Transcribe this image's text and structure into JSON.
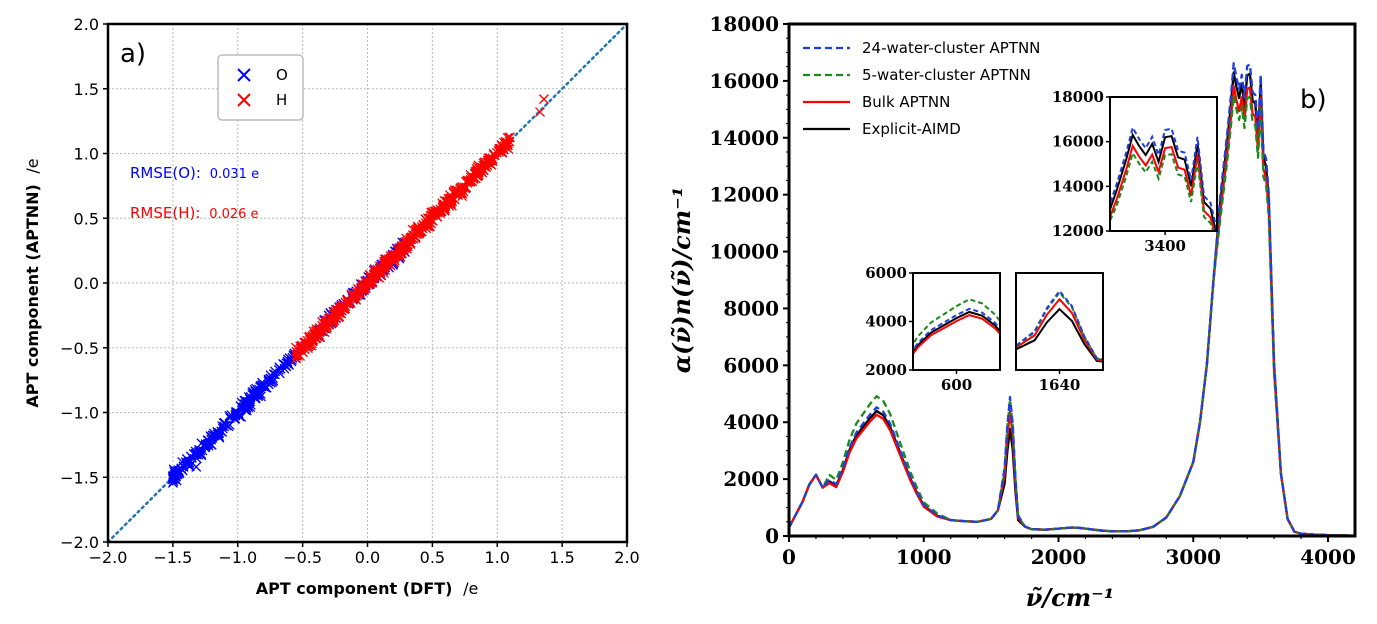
{
  "chart_data": [
    {
      "type": "scatter",
      "panel_label": "a)",
      "xlabel": "APT component (DFT)",
      "xlabel_unit": "/e",
      "ylabel": "APT component (APTNN)",
      "ylabel_unit": "/e",
      "xlim": [
        -2.0,
        2.0
      ],
      "ylim": [
        -2.0,
        2.0
      ],
      "xticks": [
        "−2.0",
        "−1.5",
        "−1.0",
        "−0.5",
        "0.0",
        "0.5",
        "1.0",
        "1.5",
        "2.0"
      ],
      "yticks": [
        "−2.0",
        "−1.5",
        "−1.0",
        "−0.5",
        "0.0",
        "0.5",
        "1.0",
        "1.5",
        "2.0"
      ],
      "grid": true,
      "legend_position": "top-center",
      "parity_line": {
        "x": [
          -2.0,
          2.0
        ],
        "y": [
          -2.0,
          2.0
        ],
        "color": "#1f77b4",
        "style": "dotted"
      },
      "annotations": [
        {
          "label": "RMSE(O):",
          "value": "0.031 e",
          "color": "#0000ff"
        },
        {
          "label": "RMSE(H):",
          "value": "0.026 e",
          "color": "#ff0000"
        }
      ],
      "series": [
        {
          "name": "O",
          "color": "#0000ff",
          "marker": "x",
          "band": {
            "x_from": -1.5,
            "x_to": 0.3,
            "spread": 0.07
          },
          "x": [
            -1.48,
            -1.32,
            -1.28,
            -1.2,
            -1.12,
            -1.05,
            -0.98,
            -0.9,
            -0.82,
            -0.75,
            -0.68,
            -0.6,
            -0.3,
            -0.2,
            -0.1,
            0.0,
            0.05,
            0.12,
            0.2,
            0.25
          ],
          "y": [
            -1.48,
            -1.42,
            -1.33,
            -1.25,
            -1.15,
            -1.02,
            -0.95,
            -0.88,
            -0.8,
            -0.74,
            -0.65,
            -0.58,
            -0.25,
            -0.18,
            -0.08,
            0.02,
            0.06,
            0.1,
            0.15,
            0.2
          ]
        },
        {
          "name": "H",
          "color": "#ff0000",
          "marker": "x",
          "band": {
            "x_from": -0.55,
            "x_to": 1.1,
            "spread": 0.07
          },
          "x": [
            -0.55,
            -0.45,
            -0.35,
            -0.25,
            -0.15,
            -0.05,
            0.05,
            0.15,
            0.25,
            0.35,
            0.45,
            0.55,
            0.65,
            0.75,
            0.85,
            0.95,
            1.05,
            1.08,
            1.33,
            1.36
          ],
          "y": [
            -0.5,
            -0.42,
            -0.33,
            -0.22,
            -0.15,
            -0.04,
            0.04,
            0.16,
            0.24,
            0.37,
            0.46,
            0.55,
            0.64,
            0.74,
            0.83,
            0.95,
            1.03,
            1.12,
            1.32,
            1.42
          ]
        }
      ]
    },
    {
      "type": "line",
      "panel_label": "b)",
      "xlabel": "ν̃/cm⁻¹",
      "ylabel": "α(ν̃)n(ν̃)/cm⁻¹",
      "xlim": [
        0,
        4200
      ],
      "ylim": [
        0,
        18000
      ],
      "xticks": [
        0,
        1000,
        2000,
        3000,
        4000
      ],
      "yticks": [
        0,
        2000,
        4000,
        6000,
        8000,
        10000,
        12000,
        14000,
        16000,
        18000
      ],
      "grid": false,
      "legend_position": "top-left",
      "series": [
        {
          "name": "24-water-cluster APTNN",
          "color": "#1f3fdd",
          "style": "dashed",
          "scale": [
            1.04,
            1.04,
            1.02
          ]
        },
        {
          "name": "5-water-cluster APTNN",
          "color": "#1a8a1a",
          "style": "dashed",
          "scale": [
            1.13,
            1.02,
            0.95
          ]
        },
        {
          "name": "Bulk APTNN",
          "color": "#ff0000",
          "style": "solid",
          "scale": [
            0.98,
            0.93,
            0.97
          ]
        },
        {
          "name": "Explicit-AIMD",
          "color": "#000000",
          "style": "solid",
          "scale": [
            1.01,
            0.8,
            1.0
          ]
        }
      ],
      "spectrum_x": [
        0,
        100,
        150,
        200,
        250,
        300,
        350,
        400,
        450,
        500,
        550,
        600,
        650,
        700,
        750,
        800,
        850,
        900,
        950,
        1000,
        1100,
        1200,
        1300,
        1400,
        1500,
        1550,
        1600,
        1620,
        1640,
        1660,
        1680,
        1700,
        1750,
        1800,
        1900,
        2000,
        2100,
        2150,
        2200,
        2300,
        2400,
        2500,
        2600,
        2700,
        2800,
        2900,
        3000,
        3050,
        3100,
        3150,
        3200,
        3250,
        3280,
        3300,
        3320,
        3340,
        3360,
        3380,
        3400,
        3420,
        3440,
        3460,
        3480,
        3500,
        3520,
        3540,
        3560,
        3600,
        3650,
        3700,
        3750,
        3800,
        3900,
        4000,
        4100,
        4200
      ],
      "spectrum_y": [
        300,
        1200,
        1800,
        2150,
        1700,
        1900,
        1750,
        2300,
        3000,
        3500,
        3800,
        4100,
        4350,
        4200,
        3800,
        3200,
        2600,
        2000,
        1500,
        1050,
        700,
        560,
        520,
        500,
        600,
        900,
        2300,
        3700,
        4700,
        3800,
        2000,
        700,
        330,
        240,
        220,
        260,
        300,
        290,
        260,
        200,
        160,
        160,
        200,
        320,
        650,
        1400,
        2600,
        4000,
        6000,
        9000,
        11700,
        13800,
        15200,
        16300,
        15800,
        15400,
        15900,
        15100,
        16200,
        16250,
        15300,
        15200,
        14000,
        15900,
        13300,
        13000,
        11800,
        6000,
        2200,
        600,
        150,
        80,
        50,
        30,
        20,
        10
      ],
      "insets": [
        {
          "center_tick": "600",
          "xlim": [
            430,
            770
          ],
          "ylim": [
            2000,
            6000
          ],
          "yticks": [
            2000,
            4000,
            6000
          ]
        },
        {
          "center_tick": "1640",
          "xlim": [
            1570,
            1710
          ],
          "ylim": [
            0,
            6000
          ],
          "yticks": []
        },
        {
          "center_tick": "3400",
          "xlim": [
            3230,
            3560
          ],
          "ylim": [
            12000,
            18000
          ],
          "yticks": [
            12000,
            14000,
            16000,
            18000
          ]
        }
      ]
    }
  ]
}
